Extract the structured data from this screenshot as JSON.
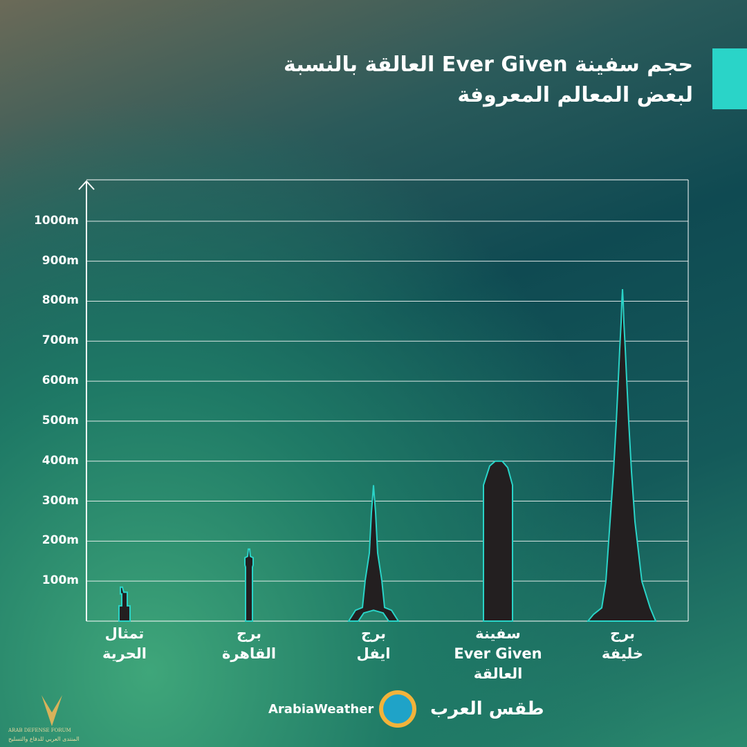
{
  "title": "حجم سفينة Ever Given العالقة بالنسبة\nلبعض المعالم المعروفة",
  "chart_data": {
    "type": "bar",
    "categories": [
      "تمثال\nالحرية",
      "برج\nالقاهرة",
      "برج\nايفل",
      "سفينة\nEver Given\nالعالقة",
      "برج\nخليفة"
    ],
    "values": [
      85,
      180,
      340,
      400,
      830
    ],
    "color": "#231f20",
    "edge_color": "#2ad4c8",
    "ylim": [
      0,
      1100
    ],
    "yticks": [
      {
        "value": 100,
        "label": "100m"
      },
      {
        "value": 200,
        "label": "200m"
      },
      {
        "value": 300,
        "label": "300m"
      },
      {
        "value": 400,
        "label": "400m"
      },
      {
        "value": 500,
        "label": "500m"
      },
      {
        "value": 600,
        "label": "600m"
      },
      {
        "value": 700,
        "label": "700m"
      },
      {
        "value": 800,
        "label": "800m"
      },
      {
        "value": 900,
        "label": "900m"
      },
      {
        "value": 1000,
        "label": "1000m"
      }
    ],
    "grid": true
  },
  "brand": {
    "latin": "ArabiaWeather",
    "arabic": "طقس العرب"
  },
  "watermark": {
    "latin": "ARAB DEFENSE FORUM",
    "arabic": "المنتدى العربي للدفاع والتسليح"
  }
}
